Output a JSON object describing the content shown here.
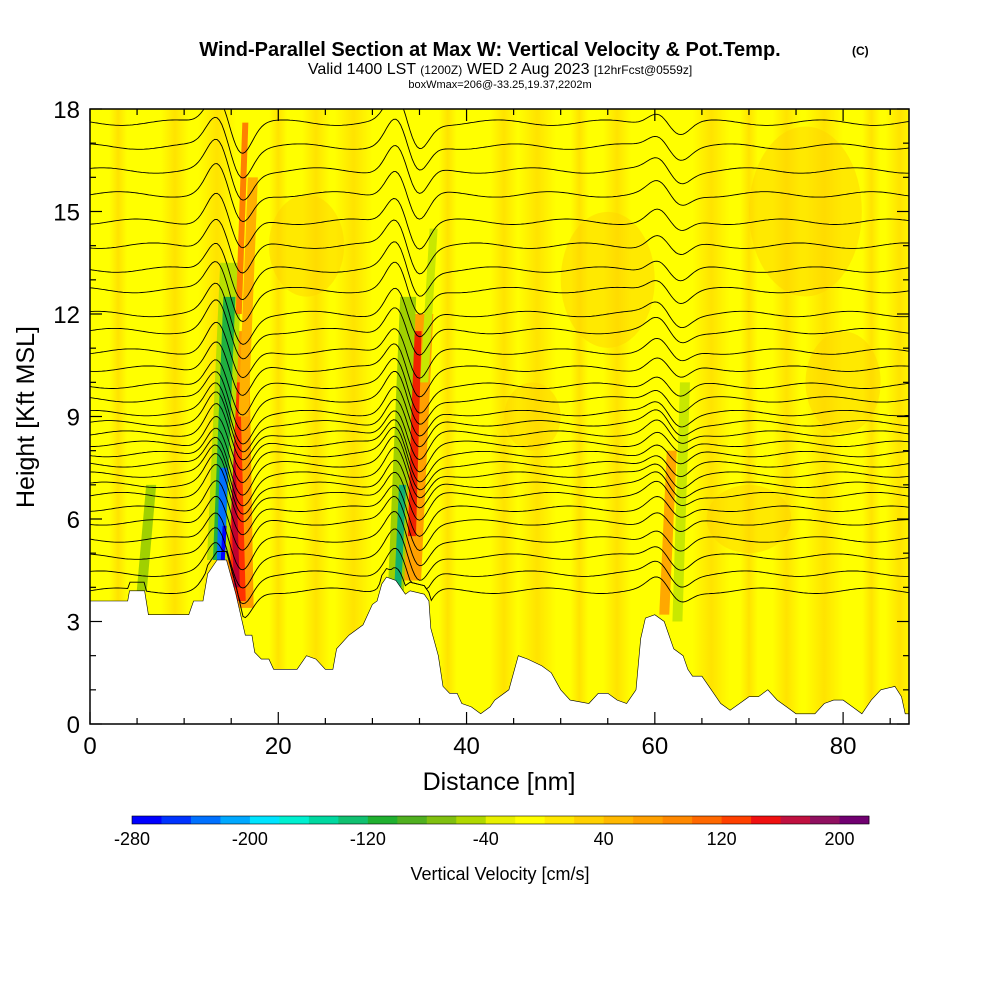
{
  "header": {
    "title": "Wind-Parallel Section at Max W: Vertical Velocity & Pot.Temp.",
    "title_mark": "(C)",
    "valid_prefix": "Valid 1400 LST",
    "valid_zulu": "(1200Z)",
    "valid_date": "WED 2 Aug 2023",
    "forecast": "[12hrFcst@0559z]",
    "box_info": "boxWmax=206@-33.25,19.37,2202m"
  },
  "chart_data": {
    "type": "heatmap",
    "xlabel": "Distance [nm]",
    "ylabel": "Height [Kft MSL]",
    "xlim": [
      0,
      87
    ],
    "ylim": [
      0,
      18
    ],
    "x_ticks": [
      "0",
      "20",
      "40",
      "60",
      "80"
    ],
    "x_tick_values": [
      0,
      20,
      40,
      60,
      80
    ],
    "y_ticks": [
      "0",
      "3",
      "6",
      "9",
      "12",
      "15",
      "18"
    ],
    "y_tick_values": [
      0,
      3,
      6,
      9,
      12,
      15,
      18
    ],
    "terrain_kft": [
      [
        0,
        3.6
      ],
      [
        4,
        3.6
      ],
      [
        4.2,
        3.9
      ],
      [
        5.8,
        3.9
      ],
      [
        6.2,
        3.2
      ],
      [
        10.5,
        3.2
      ],
      [
        11,
        3.6
      ],
      [
        12,
        3.6
      ],
      [
        12.5,
        4.4
      ],
      [
        13.5,
        4.8
      ],
      [
        14.5,
        4.8
      ],
      [
        15.5,
        3.8
      ],
      [
        16.5,
        2.6
      ],
      [
        17.2,
        2.6
      ],
      [
        17.5,
        2.1
      ],
      [
        18.2,
        1.9
      ],
      [
        19,
        1.9
      ],
      [
        19.5,
        1.6
      ],
      [
        22,
        1.6
      ],
      [
        23,
        2.0
      ],
      [
        24,
        1.9
      ],
      [
        25,
        1.6
      ],
      [
        25.8,
        1.6
      ],
      [
        26.2,
        2.2
      ],
      [
        27.5,
        2.6
      ],
      [
        29,
        2.9
      ],
      [
        30,
        3.5
      ],
      [
        30.5,
        3.6
      ],
      [
        31,
        4.1
      ],
      [
        31.5,
        4.3
      ],
      [
        32.5,
        4.2
      ],
      [
        33.5,
        3.8
      ],
      [
        34,
        3.9
      ],
      [
        35.5,
        3.8
      ],
      [
        36,
        3.6
      ],
      [
        36.2,
        2.8
      ],
      [
        37,
        2.0
      ],
      [
        37.5,
        1.1
      ],
      [
        38.2,
        0.9
      ],
      [
        39,
        0.9
      ],
      [
        39.5,
        0.6
      ],
      [
        40.5,
        0.5
      ],
      [
        41.5,
        0.3
      ],
      [
        42.5,
        0.5
      ],
      [
        43,
        0.7
      ],
      [
        44.5,
        1.0
      ],
      [
        45.5,
        2.0
      ],
      [
        46.5,
        1.9
      ],
      [
        48,
        1.7
      ],
      [
        49,
        1.5
      ],
      [
        50,
        1.0
      ],
      [
        51,
        0.7
      ],
      [
        53,
        0.6
      ],
      [
        54,
        0.9
      ],
      [
        55,
        0.9
      ],
      [
        56,
        0.7
      ],
      [
        57,
        0.6
      ],
      [
        58,
        1.0
      ],
      [
        58.5,
        2.5
      ],
      [
        59,
        3.1
      ],
      [
        60,
        3.2
      ],
      [
        61,
        3.0
      ],
      [
        62,
        2.2
      ],
      [
        63,
        2.0
      ],
      [
        63.5,
        1.6
      ],
      [
        64,
        1.4
      ],
      [
        65,
        1.4
      ],
      [
        66,
        1.0
      ],
      [
        67,
        0.6
      ],
      [
        68,
        0.4
      ],
      [
        69,
        0.6
      ],
      [
        70,
        0.8
      ],
      [
        71,
        0.8
      ],
      [
        72,
        1.0
      ],
      [
        73,
        0.7
      ],
      [
        74,
        0.5
      ],
      [
        75,
        0.3
      ],
      [
        77,
        0.3
      ],
      [
        78,
        0.6
      ],
      [
        79,
        0.7
      ],
      [
        80,
        0.7
      ],
      [
        81,
        0.5
      ],
      [
        82,
        0.3
      ],
      [
        83,
        0.7
      ],
      [
        84,
        1.0
      ],
      [
        85.5,
        1.1
      ],
      [
        86.2,
        0.8
      ],
      [
        86.6,
        0.3
      ],
      [
        87,
        0.3
      ]
    ],
    "theta_contours_kft": [
      3.9,
      4.4,
      4.9,
      5.4,
      5.9,
      6.3,
      6.7,
      7.0,
      7.3,
      7.6,
      7.9,
      8.2,
      8.5,
      8.8,
      9.1,
      9.5,
      9.9,
      10.4,
      10.9,
      11.5,
      12.0,
      12.7,
      13.3,
      14.0,
      14.7,
      15.5,
      16.2,
      16.9,
      17.6
    ],
    "updraft_columns": [
      {
        "x": 15.3,
        "peak_cm_s": 206
      },
      {
        "x": 34.2,
        "peak_cm_s": 140
      },
      {
        "x": 61.0,
        "peak_cm_s": 60
      }
    ],
    "downdraft_columns": [
      {
        "x": 14.1,
        "min_cm_s": -250
      },
      {
        "x": 32.8,
        "min_cm_s": -120
      },
      {
        "x": 62.5,
        "min_cm_s": -50
      },
      {
        "x": 5.5,
        "min_cm_s": -60
      }
    ],
    "colorbar": {
      "label": "Vertical Velocity [cm/s]",
      "min": -280,
      "max": 220,
      "step": 20,
      "tick_labels": [
        "-280",
        "-200",
        "-120",
        "-40",
        "40",
        "120",
        "200"
      ],
      "tick_values": [
        -280,
        -200,
        -120,
        -40,
        40,
        120,
        200
      ],
      "colors": [
        "#0000ff",
        "#0033ff",
        "#0070ff",
        "#00a8ff",
        "#00e4ff",
        "#00f0d0",
        "#00d8a0",
        "#10c070",
        "#20b030",
        "#50b020",
        "#80c010",
        "#b0d800",
        "#e8f000",
        "#ffff00",
        "#ffe800",
        "#ffd000",
        "#ffb800",
        "#ffa000",
        "#ff8800",
        "#ff6800",
        "#ff4000",
        "#f01010",
        "#c01040",
        "#901060",
        "#700070"
      ]
    }
  }
}
